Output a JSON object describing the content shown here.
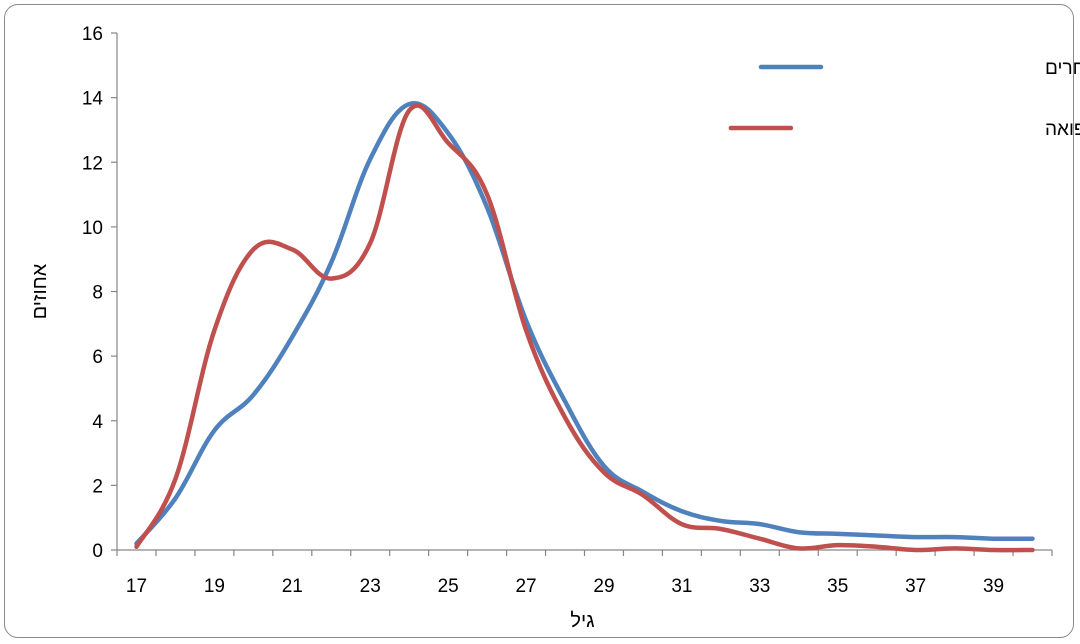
{
  "chart_data": {
    "type": "line",
    "xlabel": "גיל",
    "ylabel": "אחוזים",
    "x": [
      17,
      18,
      19,
      20,
      21,
      22,
      23,
      24,
      25,
      26,
      27,
      28,
      29,
      30,
      31,
      32,
      33,
      34,
      35,
      36,
      37,
      38,
      39,
      40
    ],
    "xticks": [
      17,
      19,
      21,
      23,
      25,
      27,
      29,
      31,
      33,
      35,
      37,
      39
    ],
    "yticks": [
      0,
      2,
      4,
      6,
      8,
      10,
      12,
      14,
      16
    ],
    "xlim": [
      16.5,
      40.5
    ],
    "ylim": [
      0,
      16
    ],
    "grid": false,
    "legend_position": "top-right",
    "series": [
      {
        "name": "סטודנטים במקצועות אחרים",
        "color": "#4f81bd",
        "values": [
          0.2,
          1.6,
          3.7,
          4.8,
          6.6,
          8.9,
          12.1,
          13.8,
          12.9,
          10.6,
          7.1,
          4.6,
          2.6,
          1.8,
          1.2,
          0.9,
          0.8,
          0.55,
          0.5,
          0.45,
          0.4,
          0.4,
          0.35,
          0.35
        ]
      },
      {
        "name": "סטודנטים לתואר ראשון ברפואה",
        "color": "#c0504d",
        "values": [
          0.1,
          2.2,
          6.8,
          9.3,
          9.3,
          8.4,
          9.5,
          13.6,
          12.6,
          11.0,
          6.8,
          4.1,
          2.4,
          1.7,
          0.8,
          0.65,
          0.35,
          0.05,
          0.15,
          0.1,
          0.0,
          0.05,
          0.0,
          0.0
        ]
      }
    ]
  }
}
